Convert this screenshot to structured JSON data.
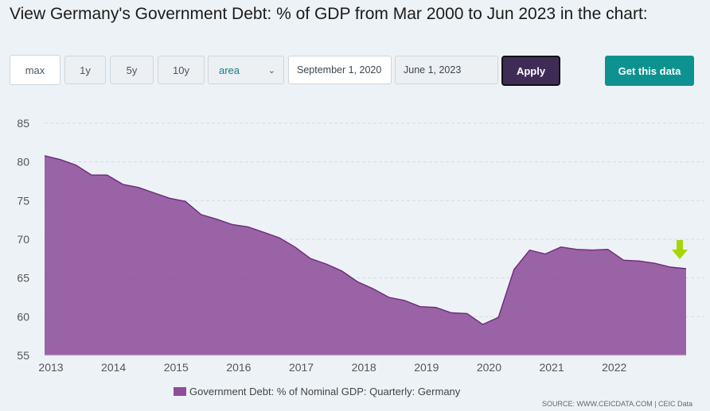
{
  "page": {
    "title": "View Germany's Government Debt: % of GDP from Mar 2000 to Jun 2023 in the chart:"
  },
  "controls": {
    "range_buttons": [
      "max",
      "1y",
      "5y",
      "10y"
    ],
    "active_range": "max",
    "chart_type": "area",
    "start_date": "September 1, 2020",
    "end_date": "June 1, 2023",
    "apply_label": "Apply",
    "get_data_label": "Get this data"
  },
  "source": "SOURCE: WWW.CEICDATA.COM | CEIC Data",
  "colors": {
    "series": "#8e4e9b",
    "series_line": "#6c2b7a",
    "accent_button": "#0e9290",
    "apply_button": "#3e2c57",
    "marker": "#a6d609"
  },
  "chart_data": {
    "type": "area",
    "title": "",
    "xlabel": "",
    "ylabel": "",
    "ylim": [
      55,
      85
    ],
    "yticks": [
      55,
      60,
      65,
      70,
      75,
      80,
      85
    ],
    "xlim": [
      2013.0,
      2023.0
    ],
    "xticks": [
      "2013",
      "2014",
      "2015",
      "2016",
      "2017",
      "2018",
      "2019",
      "2020",
      "2021",
      "2022"
    ],
    "grid": true,
    "legend_position": "bottom",
    "last_point_marker": "down-arrow",
    "series": [
      {
        "name": "Government Debt: % of Nominal GDP: Quarterly: Germany",
        "x": [
          "2013-03",
          "2013-06",
          "2013-09",
          "2013-12",
          "2014-03",
          "2014-06",
          "2014-09",
          "2014-12",
          "2015-03",
          "2015-06",
          "2015-09",
          "2015-12",
          "2016-03",
          "2016-06",
          "2016-09",
          "2016-12",
          "2017-03",
          "2017-06",
          "2017-09",
          "2017-12",
          "2018-03",
          "2018-06",
          "2018-09",
          "2018-12",
          "2019-03",
          "2019-06",
          "2019-09",
          "2019-12",
          "2020-03",
          "2020-06",
          "2020-09",
          "2020-12",
          "2021-03",
          "2021-06",
          "2021-09",
          "2021-12",
          "2022-03",
          "2022-06",
          "2022-09",
          "2022-12",
          "2023-03",
          "2023-06"
        ],
        "values": [
          80.8,
          80.3,
          79.6,
          78.3,
          78.3,
          77.1,
          76.7,
          76.0,
          75.3,
          74.9,
          73.2,
          72.6,
          71.9,
          71.6,
          70.9,
          70.2,
          69.0,
          67.5,
          66.8,
          65.9,
          64.5,
          63.6,
          62.5,
          62.1,
          61.3,
          61.2,
          60.5,
          60.4,
          59.0,
          59.9,
          66.1,
          68.6,
          68.1,
          69.0,
          68.7,
          68.6,
          68.7,
          67.3,
          67.2,
          66.9,
          66.4,
          66.2
        ]
      }
    ]
  }
}
